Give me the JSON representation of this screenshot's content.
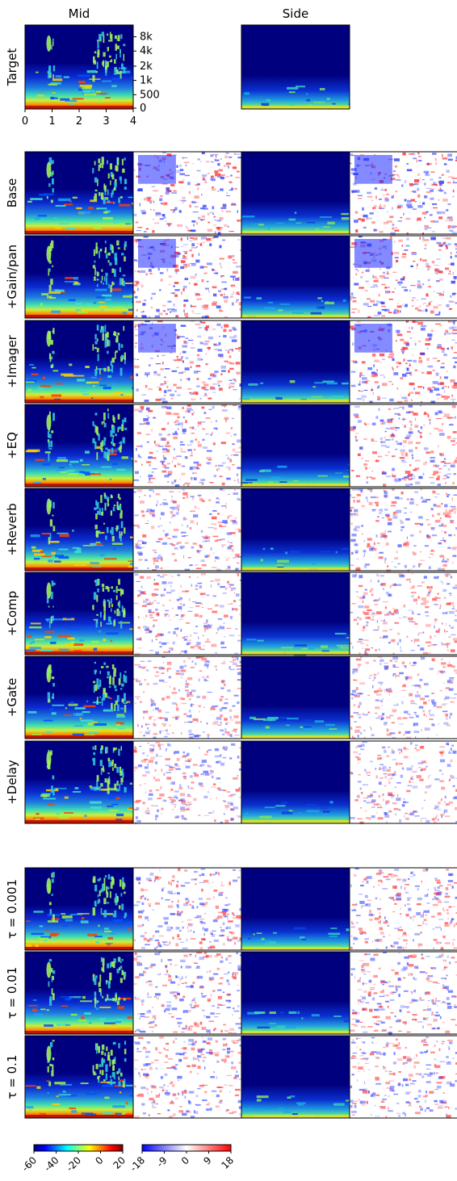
{
  "columns": {
    "mid": "Mid",
    "side": "Side"
  },
  "target_label": "Target",
  "y_axis": {
    "ticks": [
      {
        "label": "8k",
        "hz": 8000
      },
      {
        "label": "4k",
        "hz": 4000
      },
      {
        "label": "2k",
        "hz": 2000
      },
      {
        "label": "1k",
        "hz": 1000
      },
      {
        "label": "500",
        "hz": 500
      },
      {
        "label": "0",
        "hz": 0
      }
    ]
  },
  "x_axis": {
    "ticks": [
      "0",
      "1",
      "2",
      "3",
      "4"
    ],
    "range": [
      0,
      4
    ]
  },
  "group_rows": [
    "Base",
    "+Gain/pan",
    "+Imager",
    "+EQ",
    "+Reverb",
    "+Comp",
    "+Gate",
    "+Delay"
  ],
  "tau_rows": [
    "τ = 0.001",
    "τ = 0.01",
    "τ = 0.1"
  ],
  "colorbars": [
    {
      "name": "magnitude-db",
      "colormap": "jet",
      "range": [
        -60,
        20
      ],
      "ticks": [
        "-60",
        "-40",
        "-20",
        "0",
        "20"
      ]
    },
    {
      "name": "difference-db",
      "colormap": "bwr",
      "range": [
        -18,
        18
      ],
      "ticks": [
        "-18",
        "-9",
        "0",
        "9",
        "18"
      ]
    }
  ],
  "colors": {
    "jet_low": "#00007f",
    "jet_high": "#7f0000",
    "bwr_low": "#0000ff",
    "bwr_mid": "#ffffff",
    "bwr_high": "#ff0000"
  }
}
